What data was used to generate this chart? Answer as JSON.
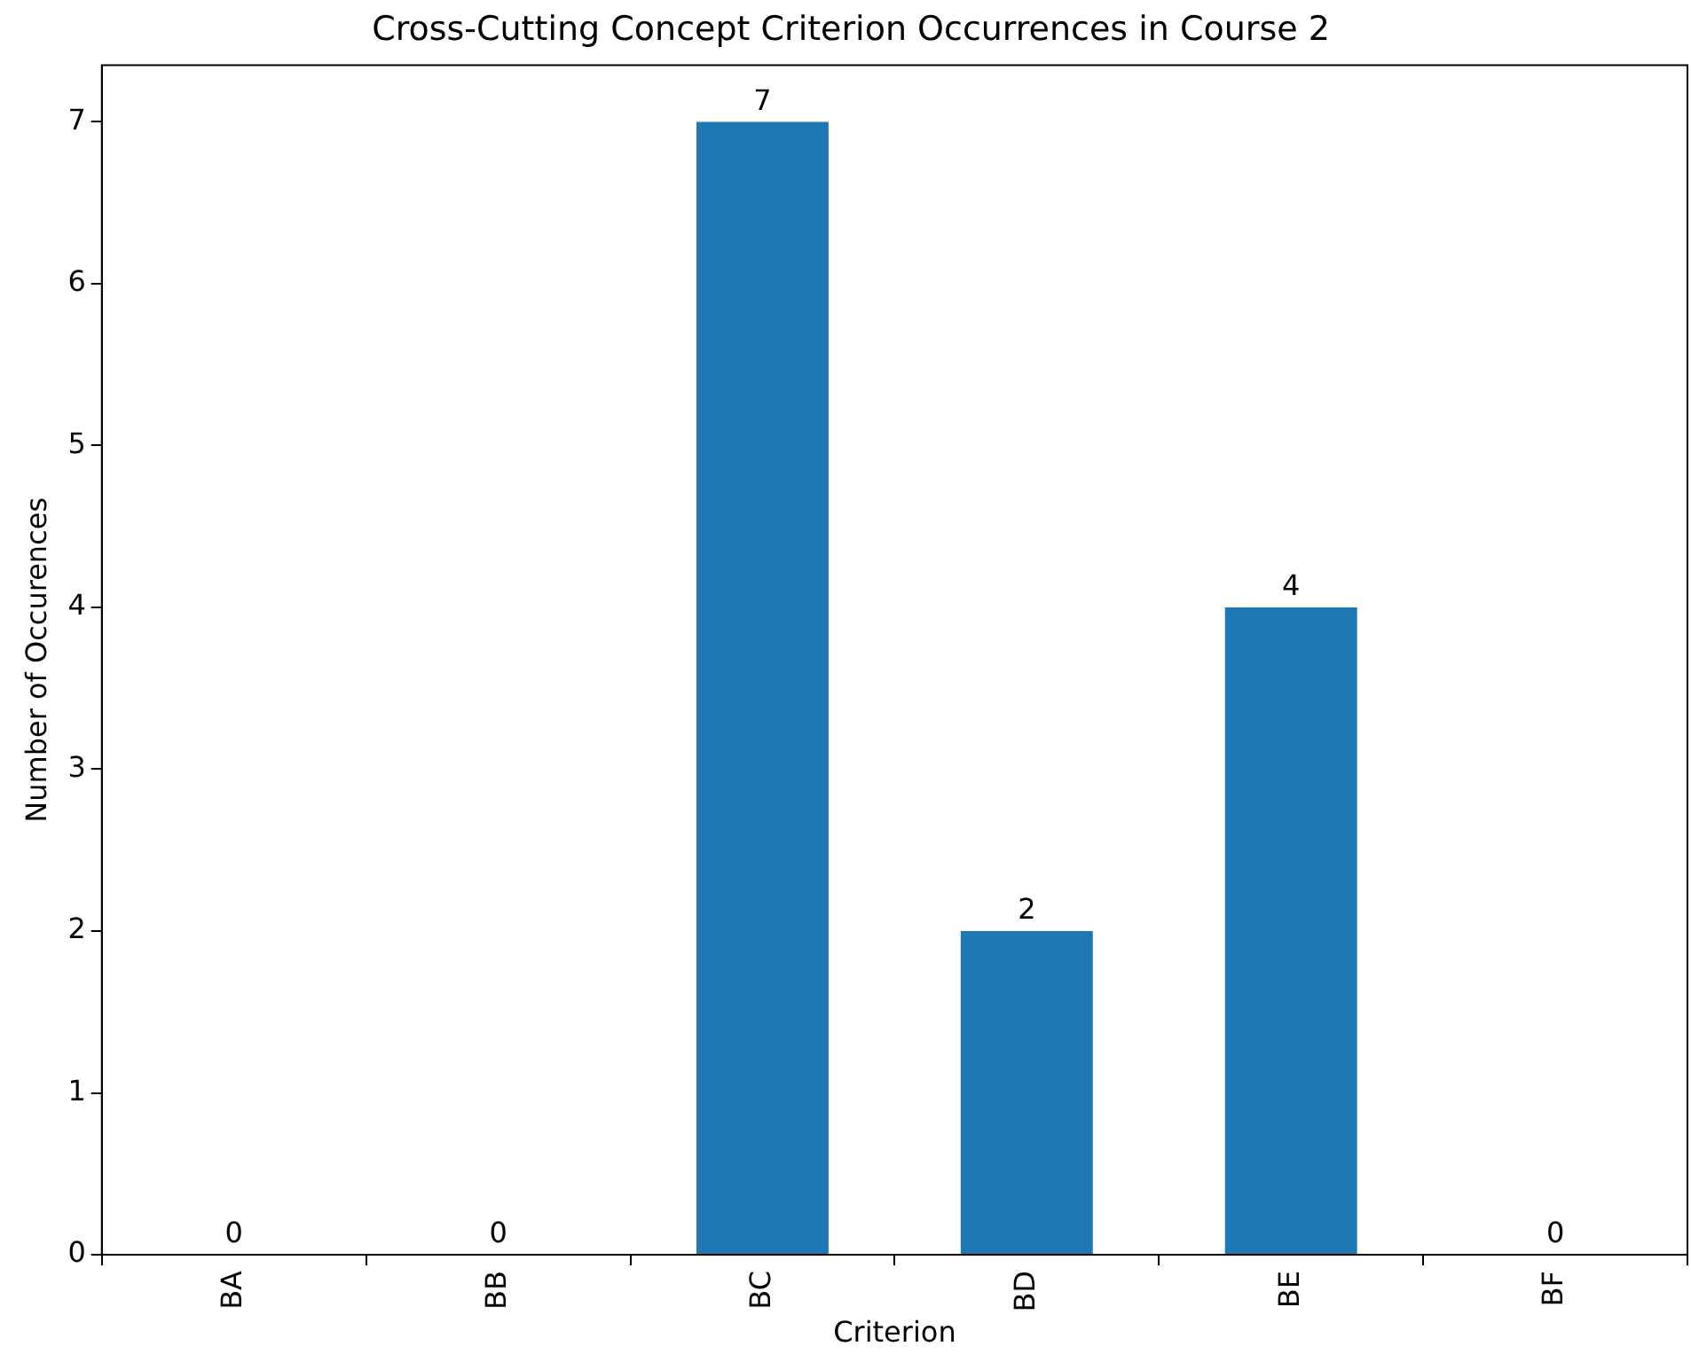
{
  "chart_data": {
    "type": "bar",
    "title": "Cross-Cutting Concept Criterion Occurrences in Course 2",
    "xlabel": "Criterion",
    "ylabel": "Number of Occurences",
    "categories": [
      "BA",
      "BB",
      "BC",
      "BD",
      "BE",
      "BF"
    ],
    "values": [
      0,
      0,
      7,
      2,
      4,
      0
    ],
    "color": "#1f77b4",
    "ylim": [
      0,
      7.35
    ],
    "yticks": [
      0,
      1,
      2,
      3,
      4,
      5,
      6,
      7
    ],
    "grid": false,
    "legend": false,
    "data_labels": true
  }
}
